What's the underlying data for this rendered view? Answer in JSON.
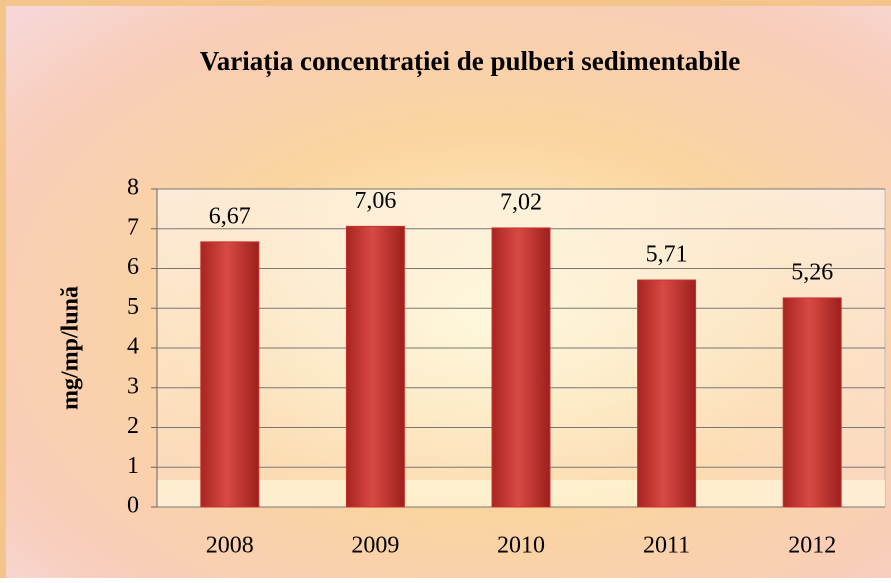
{
  "chart_data": {
    "type": "bar",
    "title": "Variația concentrației de pulberi sedimentabile",
    "y_label": "mg/mp/lună",
    "categories": [
      "2008",
      "2009",
      "2010",
      "2011",
      "2012"
    ],
    "values": [
      6.67,
      7.06,
      7.02,
      5.71,
      5.26
    ],
    "value_labels": [
      "6,67",
      "7,06",
      "7,02",
      "5,71",
      "5,26"
    ],
    "color": "#c8322e",
    "ylim": [
      0,
      8
    ],
    "yticks": [
      0,
      1,
      2,
      3,
      4,
      5,
      6,
      7,
      8
    ],
    "grid": true
  }
}
